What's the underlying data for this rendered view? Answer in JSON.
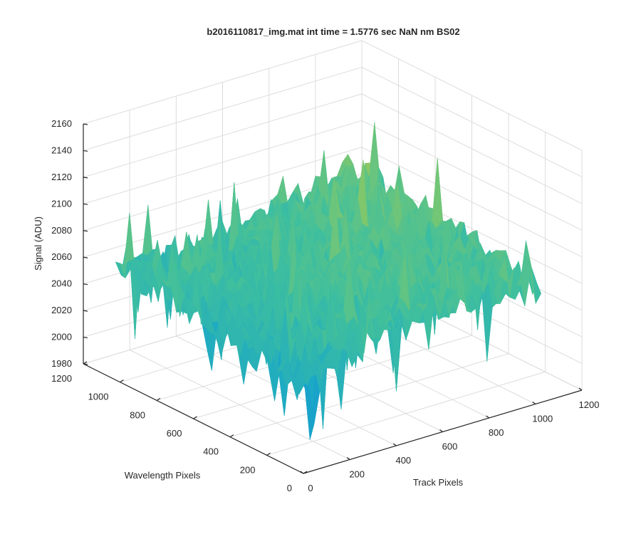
{
  "chart_data": {
    "type": "surface",
    "title": "b2016110817_img.mat int time = 1.5776 sec  NaN nm BS02",
    "xlabel": "Track Pixels",
    "ylabel": "Wavelength Pixels",
    "zlabel": "Signal (ADU)",
    "xlim": [
      0,
      1200
    ],
    "ylim": [
      0,
      1200
    ],
    "zlim": [
      1980,
      2160
    ],
    "x_ticks": [
      "0",
      "200",
      "400",
      "600",
      "800",
      "1000",
      "1200"
    ],
    "y_ticks": [
      "0",
      "200",
      "400",
      "600",
      "800",
      "1000",
      "1200"
    ],
    "z_ticks": [
      "1980",
      "2000",
      "2020",
      "2040",
      "2060",
      "2080",
      "2100",
      "2120",
      "2140",
      "2160"
    ],
    "grid": true,
    "colormap": [
      "#1f77d4",
      "#18a7c9",
      "#3fbf9e",
      "#9ccb56",
      "#f0c030"
    ],
    "surface": {
      "data_extent": [
        0,
        1024
      ],
      "baseline_range": [
        2035,
        2095
      ],
      "noise_range": [
        1990,
        2150
      ]
    }
  }
}
